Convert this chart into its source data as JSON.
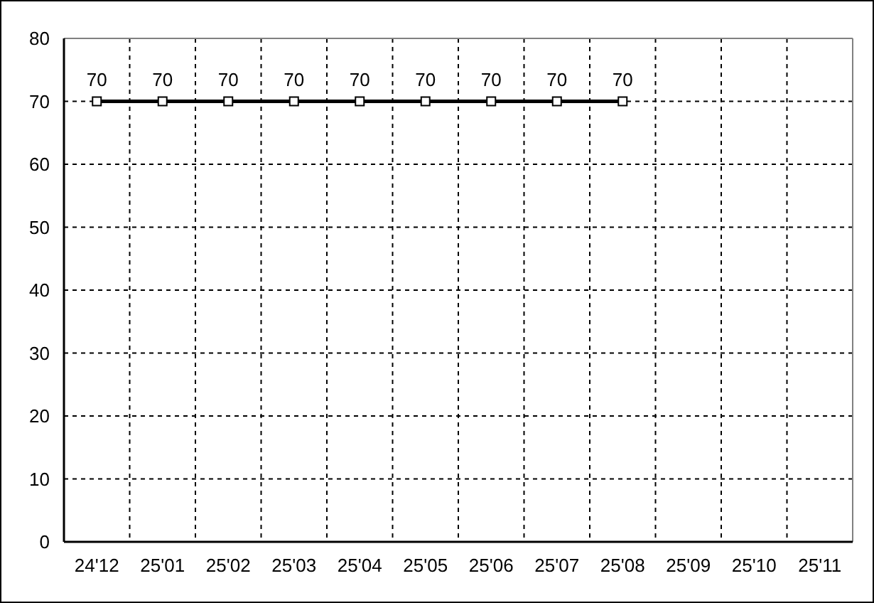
{
  "chart_data": {
    "type": "line",
    "categories": [
      "24'12",
      "25'01",
      "25'02",
      "25'03",
      "25'04",
      "25'05",
      "25'06",
      "25'07",
      "25'08",
      "25'09",
      "25'10",
      "25'11"
    ],
    "values": [
      70,
      70,
      70,
      70,
      70,
      70,
      70,
      70,
      70,
      null,
      null,
      null
    ],
    "color": "#000000",
    "ylim": [
      0,
      80
    ],
    "yticks": [
      0,
      10,
      20,
      30,
      40,
      50,
      60,
      70,
      80
    ],
    "grid": true,
    "marker": "square",
    "line_style": "solid",
    "data_labels": true
  }
}
